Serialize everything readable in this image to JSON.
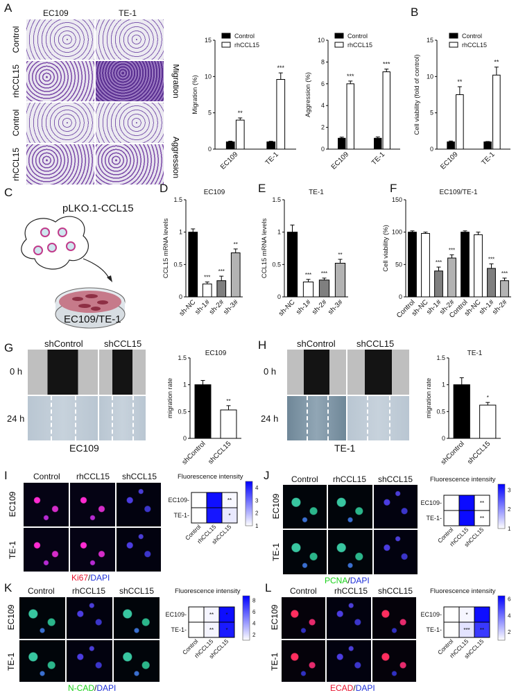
{
  "panels": {
    "A": {
      "letter": "A",
      "col1": "EC109",
      "col2": "TE-1",
      "rows": [
        "Control",
        "rhCCL15",
        "Control",
        "rhCCL15"
      ],
      "side1": "Migration",
      "side2": "Aggression"
    },
    "B": {
      "letter": "B"
    },
    "C": {
      "letter": "C",
      "plasmid": "pLKO.1-CCL15",
      "cells": "EC109/TE-1"
    },
    "D": {
      "letter": "D"
    },
    "E": {
      "letter": "E"
    },
    "F": {
      "letter": "F"
    },
    "G": {
      "letter": "G",
      "col1": "shControl",
      "col2": "shCCL15",
      "row1": "0 h",
      "row2": "24 h",
      "caption": "EC109"
    },
    "H": {
      "letter": "H",
      "col1": "shControl",
      "col2": "shCCL15",
      "row1": "0 h",
      "row2": "24 h",
      "caption": "TE-1"
    },
    "I": {
      "letter": "I",
      "cols": [
        "Control",
        "rhCCL15",
        "shCCL15"
      ],
      "rows": [
        "EC109",
        "TE-1"
      ],
      "stain1": "Ki67",
      "stain2": "DAPI"
    },
    "J": {
      "letter": "J",
      "cols": [
        "Control",
        "rhCCL15",
        "shCCL15"
      ],
      "rows": [
        "EC109",
        "TE-1"
      ],
      "stain1": "PCNA",
      "stain2": "DAPI"
    },
    "K": {
      "letter": "K",
      "cols": [
        "Control",
        "rhCCL15",
        "shCCL15"
      ],
      "rows": [
        "EC109",
        "TE-1"
      ],
      "stain1": "N-CAD",
      "stain2": "DAPI"
    },
    "L": {
      "letter": "L",
      "cols": [
        "Control",
        "rhCCL15",
        "shCCL15"
      ],
      "rows": [
        "EC109",
        "TE-1"
      ],
      "stain1": "ECAD",
      "stain2": "DAPI"
    }
  },
  "chart_data": [
    {
      "id": "A-mig",
      "type": "bar",
      "categories": [
        "EC109",
        "TE-1"
      ],
      "series": [
        {
          "name": "Control",
          "values": [
            1.0,
            1.0
          ],
          "err": [
            0.1,
            0.08
          ],
          "fill": "#000000"
        },
        {
          "name": "rhCCL15",
          "values": [
            4.0,
            9.6
          ],
          "err": [
            0.3,
            0.9
          ],
          "fill": "#ffffff"
        }
      ],
      "ylabel": "Migration (%)",
      "ylim": [
        0,
        15
      ],
      "yticks": [
        0,
        5,
        10,
        15
      ],
      "sig": [
        "**",
        "***"
      ],
      "legend": "top"
    },
    {
      "id": "A-agg",
      "type": "bar",
      "categories": [
        "EC109",
        "TE-1"
      ],
      "series": [
        {
          "name": "Control",
          "values": [
            1.0,
            1.0
          ],
          "err": [
            0.1,
            0.12
          ],
          "fill": "#000000"
        },
        {
          "name": "rhCCL15",
          "values": [
            6.0,
            7.1
          ],
          "err": [
            0.25,
            0.25
          ],
          "fill": "#ffffff"
        }
      ],
      "ylabel": "Aggression (%)",
      "ylim": [
        0,
        10
      ],
      "yticks": [
        0,
        2,
        4,
        6,
        8,
        10
      ],
      "sig": [
        "***",
        "***"
      ],
      "legend": "top"
    },
    {
      "id": "B",
      "type": "bar",
      "categories": [
        "EC109",
        "TE-1"
      ],
      "series": [
        {
          "name": "Control",
          "values": [
            1.0,
            1.0
          ],
          "err": [
            0.12,
            0.05
          ],
          "fill": "#000000"
        },
        {
          "name": "rhCCL15",
          "values": [
            7.5,
            10.2
          ],
          "err": [
            1.1,
            1.1
          ],
          "fill": "#ffffff"
        }
      ],
      "ylabel": "Cell viability (fold of control)",
      "ylim": [
        0,
        15
      ],
      "yticks": [
        0,
        5,
        10,
        15
      ],
      "sig": [
        "**",
        "**"
      ],
      "legend": "top"
    },
    {
      "id": "D",
      "type": "bar",
      "title": "EC109",
      "categories": [
        "sh-NC",
        "sh-1#",
        "sh-2#",
        "sh-3#"
      ],
      "values": [
        1.0,
        0.2,
        0.25,
        0.68
      ],
      "err": [
        0.05,
        0.03,
        0.07,
        0.06
      ],
      "fills": [
        "#000000",
        "#ffffff",
        "#7f7f7f",
        "#b3b3b3"
      ],
      "sig": [
        "",
        "***",
        "***",
        "**"
      ],
      "ylabel": "CCL15 mRNA levels",
      "ylim": [
        0,
        1.5
      ],
      "yticks": [
        0,
        0.5,
        1.0,
        1.5
      ]
    },
    {
      "id": "E",
      "type": "bar",
      "title": "TE-1",
      "categories": [
        "sh-NC",
        "sh-1#",
        "sh-2#",
        "sh-3#"
      ],
      "values": [
        1.0,
        0.23,
        0.26,
        0.52
      ],
      "err": [
        0.11,
        0.04,
        0.03,
        0.06
      ],
      "fills": [
        "#000000",
        "#ffffff",
        "#7f7f7f",
        "#b3b3b3"
      ],
      "sig": [
        "",
        "***",
        "***",
        "**"
      ],
      "ylabel": "CCL15 mRNA levels",
      "ylim": [
        0,
        1.5
      ],
      "yticks": [
        0,
        0.5,
        1.0,
        1.5
      ]
    },
    {
      "id": "F",
      "type": "bar",
      "title": "EC109/TE-1",
      "categories": [
        "Control",
        "sh-NC",
        "sh-1#",
        "sh-2#",
        "Control",
        "sh-NC",
        "sh-1#",
        "sh-2#"
      ],
      "values": [
        100,
        98,
        40,
        60,
        100,
        96,
        44,
        25
      ],
      "err": [
        2,
        2,
        6,
        5,
        2,
        4,
        7,
        4
      ],
      "fills": [
        "#000000",
        "#ffffff",
        "#7f7f7f",
        "#b3b3b3",
        "#000000",
        "#ffffff",
        "#7f7f7f",
        "#b3b3b3"
      ],
      "sig": [
        "",
        "",
        "***",
        "***",
        "",
        "",
        "***",
        "***"
      ],
      "ylabel": "Cell viability (%)",
      "ylim": [
        0,
        150
      ],
      "yticks": [
        0,
        50,
        100,
        150
      ]
    },
    {
      "id": "G",
      "type": "bar",
      "title": "EC109",
      "categories": [
        "shControl",
        "shCCL15"
      ],
      "values": [
        1.0,
        0.53
      ],
      "err": [
        0.08,
        0.08
      ],
      "fills": [
        "#000000",
        "#ffffff"
      ],
      "sig": [
        "",
        "**"
      ],
      "ylabel": "migration rate",
      "ylim": [
        0,
        1.5
      ],
      "yticks": [
        0,
        0.5,
        1.0,
        1.5
      ]
    },
    {
      "id": "H",
      "type": "bar",
      "title": "TE-1",
      "categories": [
        "shControl",
        "shCCL15"
      ],
      "values": [
        1.0,
        0.62
      ],
      "err": [
        0.13,
        0.05
      ],
      "fills": [
        "#000000",
        "#ffffff"
      ],
      "sig": [
        "",
        "*"
      ],
      "ylabel": "migration rate",
      "ylim": [
        0,
        1.5
      ],
      "yticks": [
        0,
        0.5,
        1.0,
        1.5
      ]
    },
    {
      "id": "I-heat",
      "type": "heatmap",
      "title": "Fluorescence intensity",
      "rows": [
        "EC109",
        "TE-1"
      ],
      "cols": [
        "Control",
        "rhCCL15",
        "shCCL15"
      ],
      "values": [
        [
          1,
          4.3,
          1.1
        ],
        [
          1,
          4.2,
          1.3
        ]
      ],
      "sig": [
        [
          "",
          "",
          "**"
        ],
        [
          "",
          "",
          "*"
        ]
      ],
      "cbar": [
        1,
        2,
        3,
        4
      ],
      "cmax": 4.5
    },
    {
      "id": "J-heat",
      "type": "heatmap",
      "title": "Fluorescence intensity",
      "rows": [
        "EC109",
        "TE-1"
      ],
      "cols": [
        "Control",
        "rhCCL15",
        "shCCL15"
      ],
      "values": [
        [
          1,
          3.2,
          1.0
        ],
        [
          1,
          3.2,
          1.0
        ]
      ],
      "sig": [
        [
          "",
          "",
          "**"
        ],
        [
          "",
          "",
          "**"
        ]
      ],
      "cbar": [
        1,
        2,
        3
      ],
      "cmax": 3.3
    },
    {
      "id": "K-heat",
      "type": "heatmap",
      "title": "Fluorescence intensity",
      "rows": [
        "EC109",
        "TE-1"
      ],
      "cols": [
        "Control",
        "rhCCL15",
        "shCCL15"
      ],
      "values": [
        [
          1,
          1.3,
          8.4
        ],
        [
          1,
          1.3,
          8.0
        ]
      ],
      "sig": [
        [
          "",
          "**",
          "*"
        ],
        [
          "",
          "**",
          "*"
        ]
      ],
      "cbar": [
        2,
        4,
        6,
        8
      ],
      "cmax": 8.8
    },
    {
      "id": "L-heat",
      "type": "heatmap",
      "title": "Fluorescence intensity",
      "rows": [
        "EC109",
        "TE-1"
      ],
      "cols": [
        "Control",
        "rhCCL15",
        "shCCL15"
      ],
      "values": [
        [
          1,
          1.2,
          6.1
        ],
        [
          1,
          1.6,
          5.2
        ]
      ],
      "sig": [
        [
          "",
          "*",
          ""
        ],
        [
          "",
          "***",
          "**"
        ]
      ],
      "cbar": [
        2,
        4,
        6
      ],
      "cmax": 6.4
    }
  ]
}
